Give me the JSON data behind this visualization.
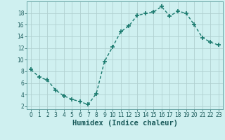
{
  "x": [
    0,
    1,
    2,
    3,
    4,
    5,
    6,
    7,
    8,
    9,
    10,
    11,
    12,
    13,
    14,
    15,
    16,
    17,
    18,
    19,
    20,
    21,
    22,
    23
  ],
  "y": [
    8.3,
    7.0,
    6.5,
    4.8,
    3.8,
    3.2,
    2.8,
    2.3,
    4.2,
    9.7,
    12.2,
    14.8,
    15.8,
    17.6,
    17.9,
    18.2,
    19.1,
    17.5,
    18.3,
    18.0,
    16.0,
    13.8,
    13.0,
    12.5
  ],
  "line_color": "#1a7a6e",
  "marker": "+",
  "marker_size": 5,
  "marker_lw": 1.2,
  "line_width": 1.0,
  "background_color": "#cff0f0",
  "grid_color": "#b0d0d0",
  "xlabel": "Humidex (Indice chaleur)",
  "xlim": [
    -0.5,
    23.5
  ],
  "ylim": [
    1.5,
    20.0
  ],
  "yticks": [
    2,
    4,
    6,
    8,
    10,
    12,
    14,
    16,
    18
  ],
  "xticks": [
    0,
    1,
    2,
    3,
    4,
    5,
    6,
    7,
    8,
    9,
    10,
    11,
    12,
    13,
    14,
    15,
    16,
    17,
    18,
    19,
    20,
    21,
    22,
    23
  ],
  "tick_fontsize": 5.5,
  "xlabel_fontsize": 7.5,
  "tick_color": "#1a5a5a",
  "spine_color": "#5a9a9a",
  "grid_lw": 0.6
}
